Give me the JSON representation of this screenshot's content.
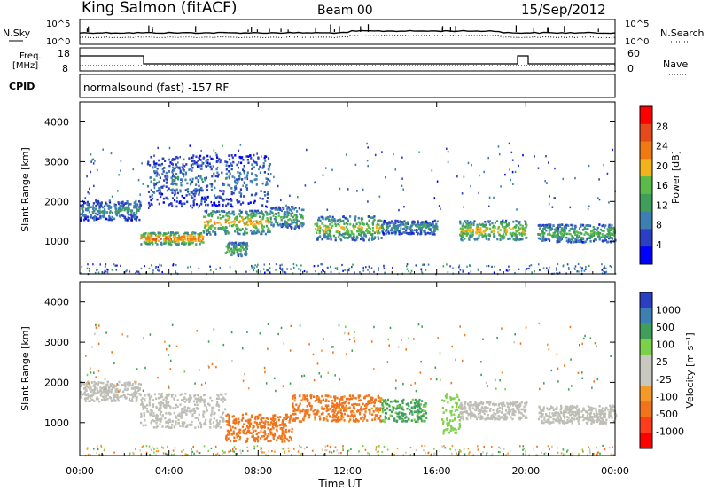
{
  "header": {
    "site": "King Salmon (fitACF)",
    "beam": "Beam 00",
    "date": "15/Sep/2012"
  },
  "noise_panel": {
    "left_label": "N.Sky",
    "right_label": "N.Search",
    "ticks": [
      "10^5",
      "10^0"
    ]
  },
  "freq_panel": {
    "left_label_1": "Freq.",
    "left_label_2": "[MHz]",
    "left_ticks": [
      "18",
      "8"
    ],
    "right_ticks": [
      "60",
      "0"
    ],
    "right_label": "Nave"
  },
  "cpid_panel": {
    "label": "CPID",
    "text": "normalsound (fast) -157 RF"
  },
  "colors": {
    "power_scale": [
      "#0000ff",
      "#2b3fc2",
      "#3c7fb0",
      "#3f9e5a",
      "#5cba4a",
      "#f2b21c",
      "#f07a12",
      "#e54b1a",
      "#ff0000"
    ],
    "velocity_scale": [
      "#ff0000",
      "#ff3c1c",
      "#f0741c",
      "#f59a2a",
      "#c8c8c0",
      "#c8c8c0",
      "#7cd04a",
      "#3f9e5a",
      "#3c7fb0",
      "#2b3fc2"
    ],
    "ground_scatter": "#bebeb6"
  },
  "chart_data": [
    {
      "type": "heatmap",
      "name": "power",
      "ylabel": "Slant Range [km]",
      "yticks": [
        "4000",
        "3000",
        "2000",
        "1000"
      ],
      "ylim": [
        180,
        4500
      ],
      "xlim": [
        0,
        24
      ],
      "colorbar": {
        "label": "Power [dB]",
        "ticks": [
          "28",
          "24",
          "20",
          "16",
          "12",
          "8",
          "4"
        ],
        "range": [
          0,
          32
        ]
      },
      "echo_bands": [
        {
          "t0": 0.0,
          "t1": 2.7,
          "r0": 1550,
          "r1": 2050,
          "value": 10
        },
        {
          "t0": 2.7,
          "t1": 5.5,
          "r0": 950,
          "r1": 1250,
          "value": 22
        },
        {
          "t0": 5.5,
          "t1": 8.5,
          "r0": 1200,
          "r1": 1800,
          "value": 18
        },
        {
          "t0": 6.5,
          "t1": 7.5,
          "r0": 650,
          "r1": 1000,
          "value": 14
        },
        {
          "t0": 8.5,
          "t1": 10.0,
          "r0": 1350,
          "r1": 1900,
          "value": 12
        },
        {
          "t0": 10.5,
          "t1": 13.5,
          "r0": 1050,
          "r1": 1650,
          "value": 16
        },
        {
          "t0": 13.5,
          "t1": 16.0,
          "r0": 1200,
          "r1": 1550,
          "value": 10
        },
        {
          "t0": 17.0,
          "t1": 20.0,
          "r0": 1050,
          "r1": 1550,
          "value": 17
        },
        {
          "t0": 20.5,
          "t1": 24.0,
          "r0": 1000,
          "r1": 1450,
          "value": 13
        },
        {
          "t0": 3.0,
          "t1": 8.5,
          "r0": 1900,
          "r1": 3200,
          "value": 8
        }
      ]
    },
    {
      "type": "heatmap",
      "name": "velocity",
      "ylabel": "Slant Range [km]",
      "yticks": [
        "4000",
        "3000",
        "2000",
        "1000"
      ],
      "ylim": [
        180,
        4500
      ],
      "xlim": [
        0,
        24
      ],
      "colorbar": {
        "label": "Velocity [m s⁻¹]",
        "ticks": [
          "1000",
          "500",
          "100",
          "25",
          "-25",
          "-100",
          "-500",
          "-1000"
        ]
      },
      "echo_bands": [
        {
          "t0": 0.0,
          "t1": 2.7,
          "r0": 1550,
          "r1": 2050,
          "value": 0
        },
        {
          "t0": 2.7,
          "t1": 6.5,
          "r0": 900,
          "r1": 1750,
          "value": 0
        },
        {
          "t0": 6.5,
          "t1": 9.5,
          "r0": 550,
          "r1": 1250,
          "value": -300
        },
        {
          "t0": 9.5,
          "t1": 13.5,
          "r0": 1050,
          "r1": 1700,
          "value": -200
        },
        {
          "t0": 13.5,
          "t1": 15.5,
          "r0": 1050,
          "r1": 1600,
          "value": 150
        },
        {
          "t0": 16.2,
          "t1": 17.0,
          "r0": 750,
          "r1": 1800,
          "value": 60
        },
        {
          "t0": 17.0,
          "t1": 20.0,
          "r0": 1100,
          "r1": 1550,
          "value": 0
        },
        {
          "t0": 20.5,
          "t1": 24.0,
          "r0": 1000,
          "r1": 1450,
          "value": 0
        }
      ]
    }
  ],
  "x_axis": {
    "ticks": [
      "00:00",
      "04:00",
      "08:00",
      "12:00",
      "16:00",
      "20:00",
      "00:00"
    ],
    "label": "Time UT"
  }
}
